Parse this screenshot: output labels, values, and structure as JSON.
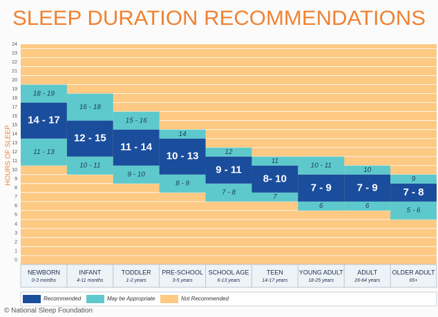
{
  "chart_data": {
    "type": "range_bar",
    "title": "SLEEP DURATION RECOMMENDATIONS",
    "y_label": "HOURS OF SLEEP",
    "categories": [
      "NEWBORN",
      "INFANT",
      "TODDLER",
      "PRE-SCHOOL",
      "SCHOOL AGE",
      "TEEN",
      "YOUNG ADULT",
      "ADULT",
      "OLDER ADULT"
    ],
    "subtitles": [
      "0-3 months",
      "4-11 months",
      "1-2 years",
      "3-5 years",
      "6-13 years",
      "14-17 years",
      "18-25 years",
      "26-64 years",
      "65+"
    ],
    "ylim": [
      0,
      24
    ],
    "yticks": [
      0,
      1,
      2,
      3,
      4,
      5,
      6,
      7,
      8,
      9,
      10,
      11,
      12,
      13,
      14,
      15,
      16,
      17,
      18,
      19,
      20,
      21,
      22,
      23,
      24
    ],
    "grid": true,
    "series": [
      {
        "name": "Recommended",
        "color": "#1a4d9c",
        "low": [
          14,
          12,
          11,
          10,
          9,
          8,
          7,
          7,
          7
        ],
        "high": [
          17,
          15,
          14,
          13,
          11,
          10,
          9,
          9,
          8
        ],
        "value_labels": [
          "14 - 17",
          "12 - 15",
          "11 - 14",
          "10 - 13",
          "9 - 11",
          "8- 10",
          "7 - 9",
          "7 - 9",
          "7 - 8"
        ]
      },
      {
        "name": "May be Appropriate",
        "color": "#5ec9cc",
        "below": {
          "low": [
            11,
            10,
            9,
            8,
            7,
            7,
            6,
            6,
            5
          ],
          "high": [
            13,
            11,
            10,
            9,
            8,
            7,
            6,
            6,
            6
          ],
          "value_labels": [
            "11 - 13",
            "10 - 11",
            "9 - 10",
            "8 - 9",
            "7 - 8",
            "7",
            "6",
            "6",
            "5 - 6"
          ]
        },
        "above": {
          "low": [
            18,
            16,
            15,
            14,
            12,
            11,
            10,
            10,
            9
          ],
          "high": [
            19,
            18,
            16,
            14,
            12,
            11,
            11,
            10,
            9
          ],
          "value_labels": [
            "18 - 19",
            "16 - 18",
            "15 - 16",
            "14",
            "12",
            "11",
            "10 - 11",
            "10",
            "9"
          ]
        }
      }
    ],
    "background": {
      "name": "Not Recommended",
      "color": "#fdc983"
    },
    "credit": "© National Sleep Foundation"
  }
}
